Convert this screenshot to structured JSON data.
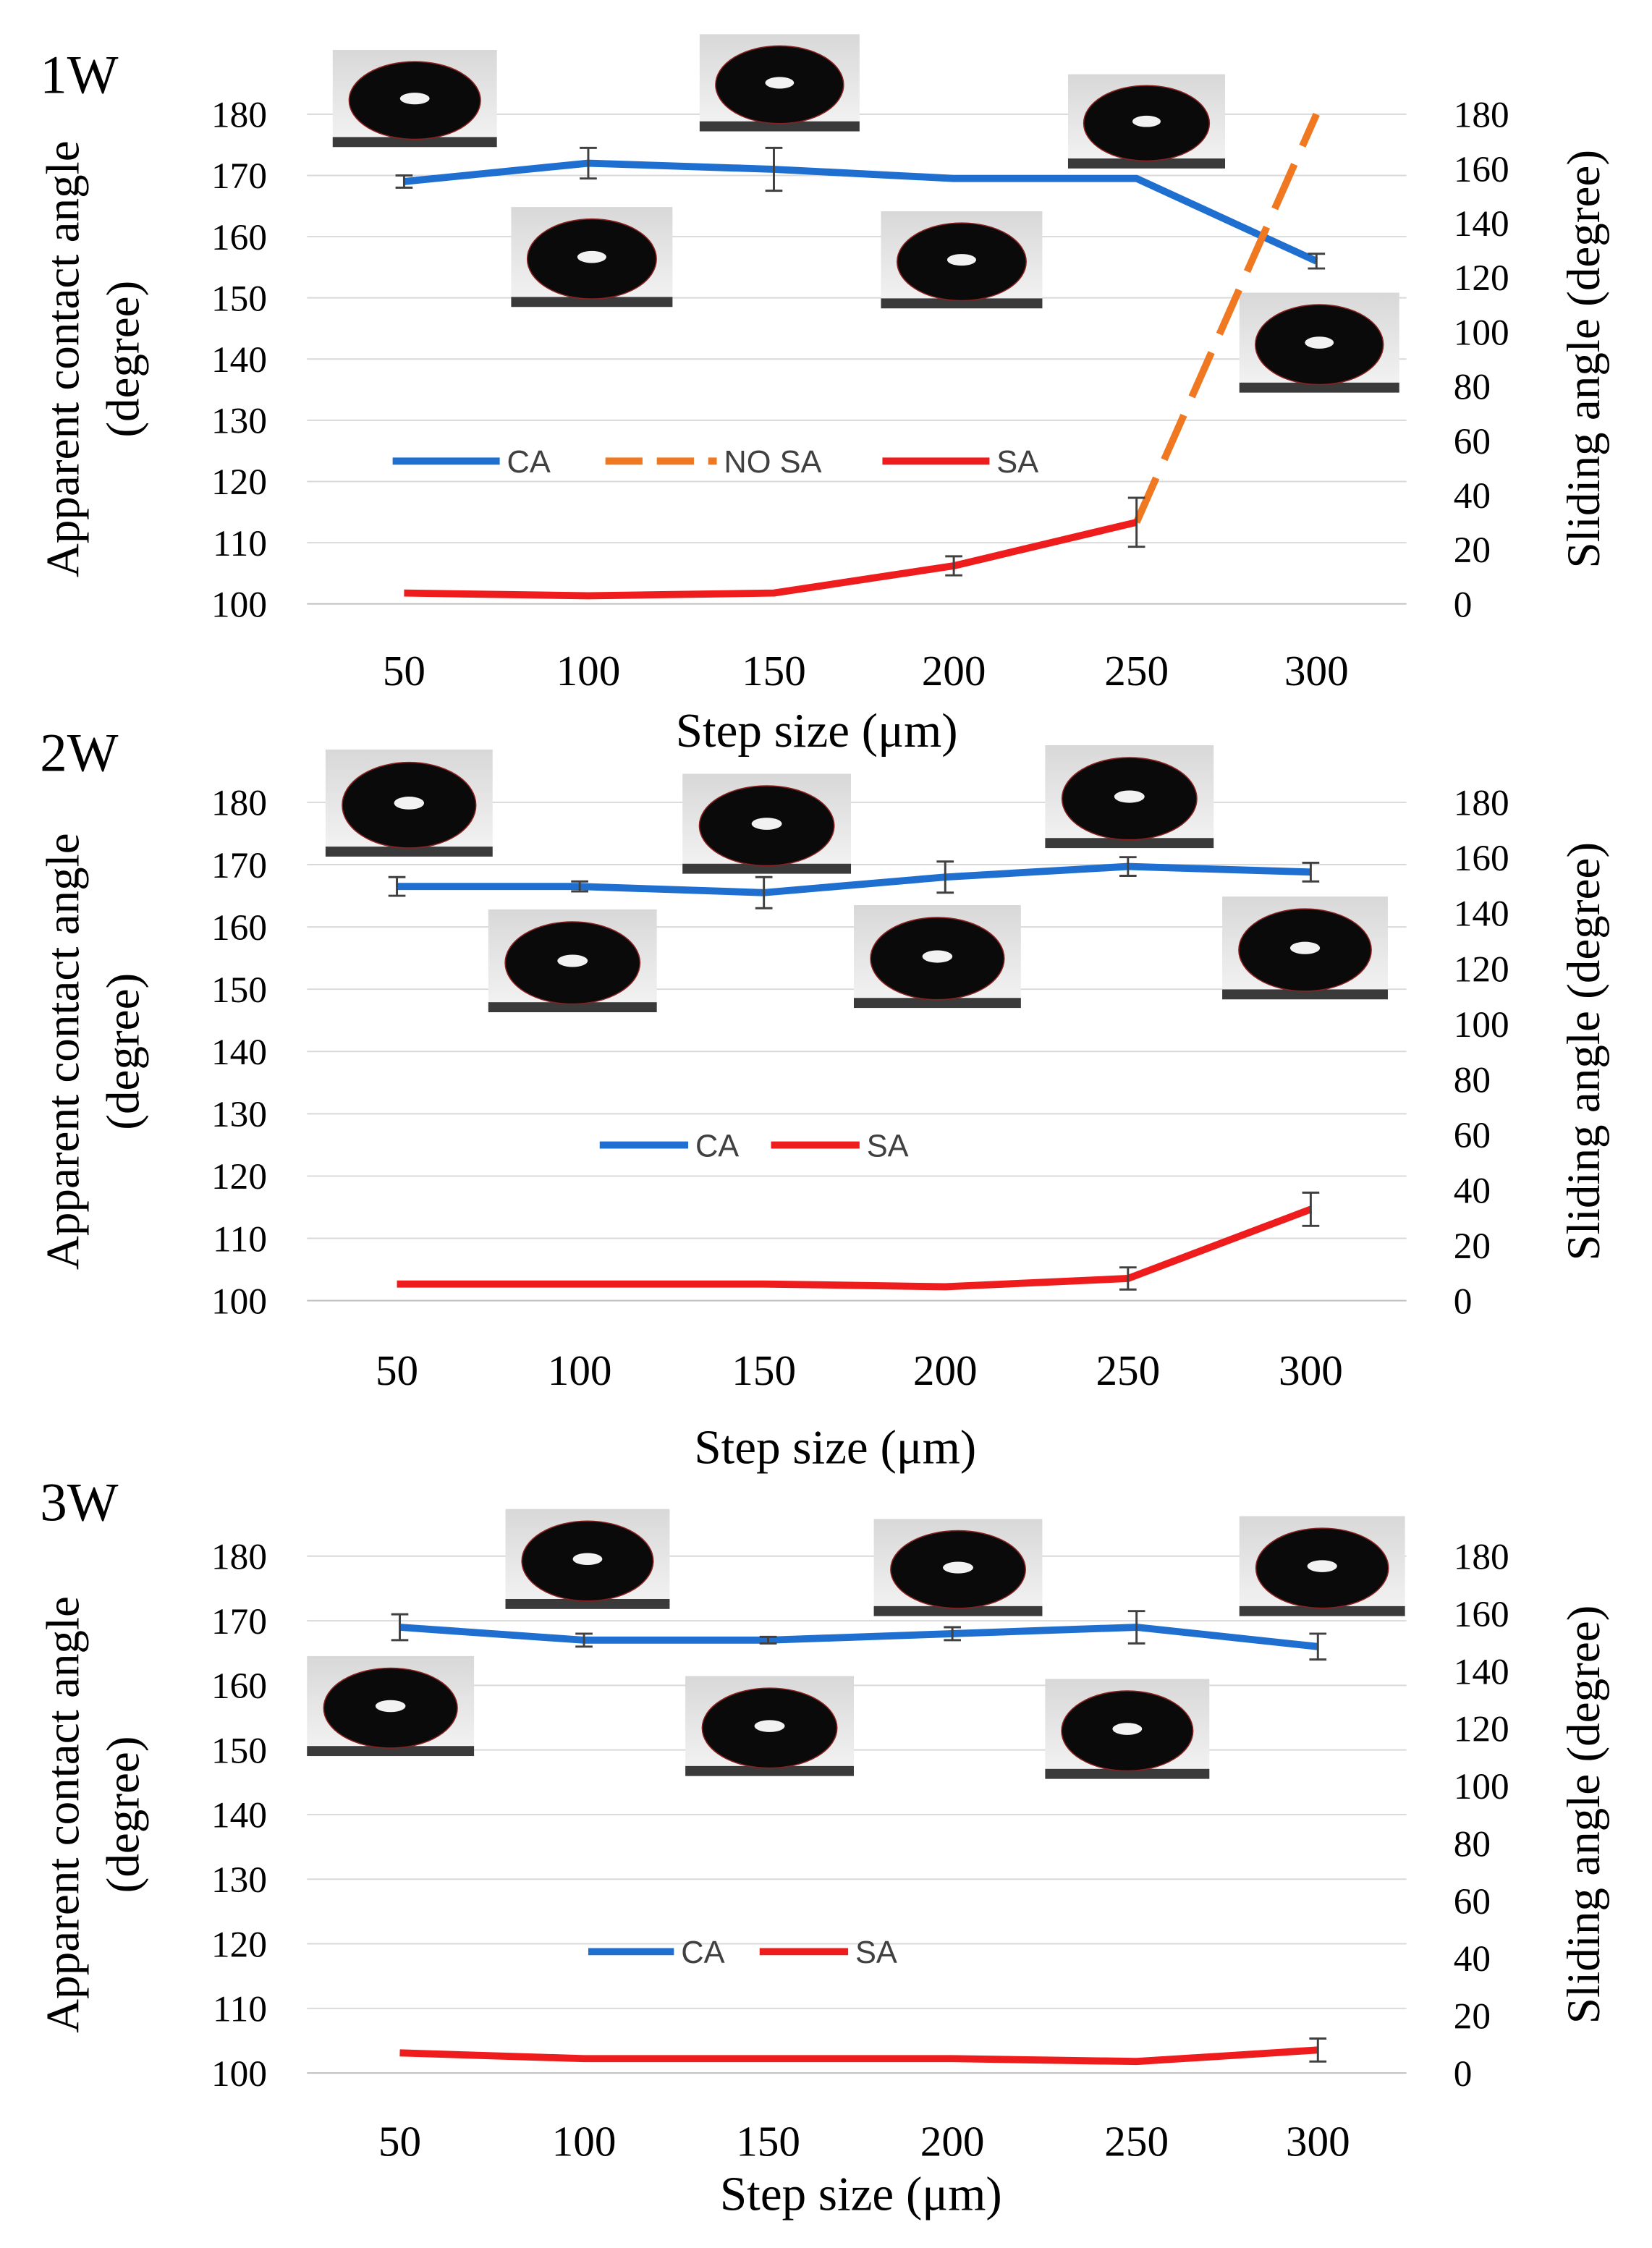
{
  "chart_data": [
    {
      "type": "line",
      "panel_label": "1W",
      "categories": [
        "50",
        "100",
        "150",
        "200",
        "250",
        "300"
      ],
      "xlabel": "Step size (μm)",
      "ylabel_line1": "Apparent contact angle",
      "ylabel_line2": "(degree)",
      "y2label": "Sliding angle (degree)",
      "ylim": [
        100,
        180
      ],
      "y2lim": [
        0,
        180
      ],
      "yticks": [
        "100",
        "110",
        "120",
        "130",
        "140",
        "150",
        "160",
        "170",
        "180"
      ],
      "y2ticks": [
        "0",
        "20",
        "40",
        "60",
        "80",
        "100",
        "120",
        "140",
        "160",
        "180"
      ],
      "series": [
        {
          "name": "CA",
          "axis": "left",
          "color": "#1f6fd0",
          "dash": false,
          "values": [
            169,
            172,
            171,
            169.5,
            169.5,
            156
          ],
          "errors": [
            1,
            2.5,
            3.5,
            0,
            0,
            1.2
          ]
        },
        {
          "name": "NO SA",
          "axis": "right",
          "color": "#f07820",
          "dash": true,
          "segment": [
            4,
            5
          ],
          "values": [
            null,
            null,
            null,
            null,
            30,
            180
          ],
          "errors": [
            0,
            0,
            0,
            0,
            0,
            0
          ]
        },
        {
          "name": "SA",
          "axis": "right",
          "color": "#ee1c1c",
          "dash": false,
          "values": [
            4,
            3,
            4,
            14,
            30,
            null
          ],
          "errors": [
            0,
            0,
            0,
            3.5,
            9,
            0
          ]
        }
      ],
      "legend": [
        "CA",
        "NO SA",
        "SA"
      ],
      "droplet_images": 6
    },
    {
      "type": "line",
      "panel_label": "2W",
      "categories": [
        "50",
        "100",
        "150",
        "200",
        "250",
        "300"
      ],
      "xlabel": "Step size (μm)",
      "ylabel_line1": "Apparent contact angle",
      "ylabel_line2": "(degree)",
      "y2label": "Sliding angle (degree)",
      "ylim": [
        100,
        180
      ],
      "y2lim": [
        0,
        180
      ],
      "yticks": [
        "100",
        "110",
        "120",
        "130",
        "140",
        "150",
        "160",
        "170",
        "180"
      ],
      "y2ticks": [
        "0",
        "20",
        "40",
        "60",
        "80",
        "100",
        "120",
        "140",
        "160",
        "180"
      ],
      "series": [
        {
          "name": "CA",
          "axis": "left",
          "color": "#1f6fd0",
          "dash": false,
          "values": [
            166.5,
            166.5,
            165.5,
            168,
            169.7,
            168.8
          ],
          "errors": [
            1.5,
            0.8,
            2.5,
            2.5,
            1.5,
            1.5
          ]
        },
        {
          "name": "SA",
          "axis": "right",
          "color": "#ee1c1c",
          "dash": false,
          "values": [
            6,
            6,
            6,
            5,
            8,
            33
          ],
          "errors": [
            0,
            0,
            0,
            0,
            4,
            6
          ]
        }
      ],
      "legend": [
        "CA",
        "SA"
      ],
      "droplet_images": 6
    },
    {
      "type": "line",
      "panel_label": "3W",
      "categories": [
        "50",
        "100",
        "150",
        "200",
        "250",
        "300"
      ],
      "xlabel": "Step size (μm)",
      "ylabel_line1": "Apparent contact angle",
      "ylabel_line2": "(degree)",
      "y2label": "Sliding angle (degree)",
      "ylim": [
        100,
        180
      ],
      "y2lim": [
        0,
        180
      ],
      "yticks": [
        "100",
        "110",
        "120",
        "130",
        "140",
        "150",
        "160",
        "170",
        "180"
      ],
      "y2ticks": [
        "0",
        "20",
        "40",
        "60",
        "80",
        "100",
        "120",
        "140",
        "160",
        "180"
      ],
      "series": [
        {
          "name": "CA",
          "axis": "left",
          "color": "#1f6fd0",
          "dash": false,
          "values": [
            169,
            167,
            167,
            168,
            169,
            166
          ],
          "errors": [
            2,
            1,
            0.5,
            1,
            2.5,
            2
          ]
        },
        {
          "name": "SA",
          "axis": "right",
          "color": "#ee1c1c",
          "dash": false,
          "values": [
            7,
            5,
            5,
            5,
            4,
            8
          ],
          "errors": [
            0,
            0,
            0,
            0,
            0,
            4
          ]
        }
      ],
      "legend": [
        "CA",
        "SA"
      ],
      "droplet_images": 6
    }
  ]
}
